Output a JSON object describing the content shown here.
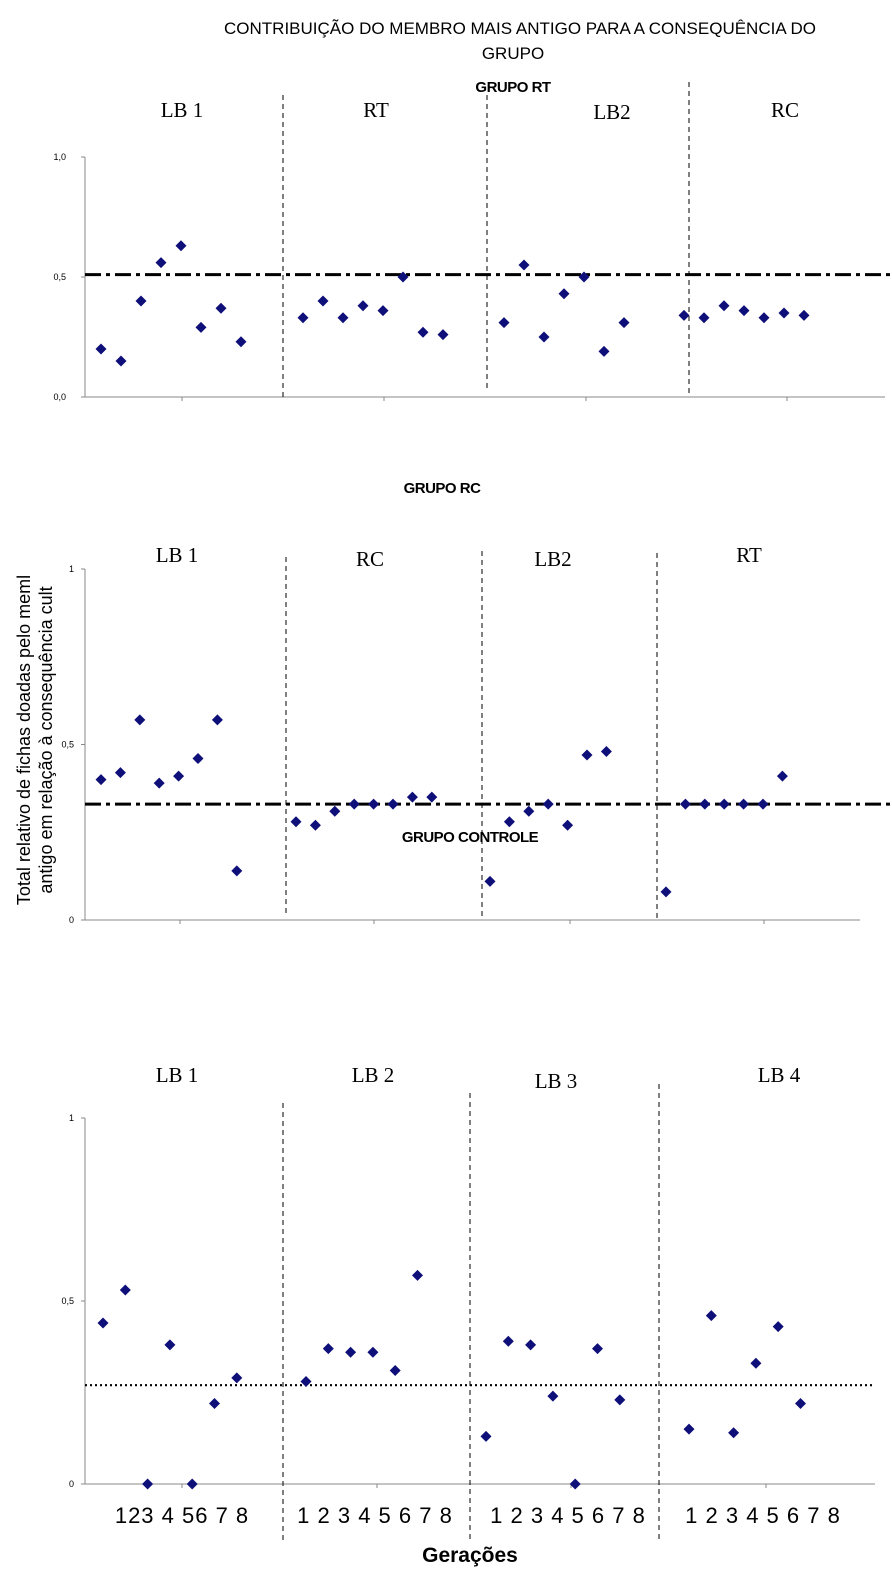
{
  "page": {
    "title_line1": "CONTRIBUIÇÃO DO MEMBRO MAIS ANTIGO PARA A CONSEQUÊNCIA DO",
    "title_line2": "GRUPO",
    "ylabel_line1": "Total relativo de fichas doadas pelo meml",
    "ylabel_line2": "antigo em relação à consequência cult",
    "xlabel": "Gerações"
  },
  "chart_data": [
    {
      "type": "scatter",
      "title": "GRUPO RT",
      "ylim": [
        0,
        1
      ],
      "yticks": [
        "0,0",
        "0,5",
        "1,0"
      ],
      "sections": [
        "LB 1",
        "RT",
        "LB2",
        "RC"
      ],
      "reference_line": {
        "y": 0.51,
        "style": "dash-dot"
      },
      "series": [
        {
          "section": "LB 1",
          "values": [
            0.2,
            0.15,
            0.4,
            0.56,
            0.63,
            0.29,
            0.37,
            0.23
          ]
        },
        {
          "section": "RT",
          "values": [
            0.33,
            0.4,
            0.33,
            0.38,
            0.36,
            0.5,
            0.27,
            0.26
          ]
        },
        {
          "section": "LB2",
          "values": [
            0.31,
            0.55,
            0.25,
            0.43,
            0.5,
            0.19,
            0.31
          ]
        },
        {
          "section": "RC",
          "values": [
            0.34,
            0.33,
            0.38,
            0.36,
            0.33,
            0.35,
            0.34
          ]
        }
      ]
    },
    {
      "type": "scatter",
      "title": "GRUPO RC",
      "ylim": [
        0,
        1
      ],
      "yticks": [
        "0",
        "0,5",
        "1"
      ],
      "sections": [
        "LB 1",
        "RC",
        "LB2",
        "RT"
      ],
      "reference_line": {
        "y": 0.33,
        "style": "dash-dot"
      },
      "series": [
        {
          "section": "LB 1",
          "values": [
            0.4,
            0.42,
            0.57,
            0.39,
            0.41,
            0.46,
            0.57,
            0.14
          ]
        },
        {
          "section": "RC",
          "values": [
            0.28,
            0.27,
            0.31,
            0.33,
            0.33,
            0.33,
            0.35,
            0.35
          ]
        },
        {
          "section": "LB2",
          "values": [
            0.11,
            0.28,
            0.31,
            0.33,
            0.27,
            0.47,
            0.48
          ]
        },
        {
          "section": "RT",
          "values": [
            0.08,
            0.33,
            0.33,
            0.33,
            0.33,
            0.33,
            0.41
          ]
        }
      ]
    },
    {
      "type": "scatter",
      "title": "GRUPO CONTROLE",
      "ylim": [
        0,
        1
      ],
      "yticks": [
        "0",
        "0,5",
        "1"
      ],
      "sections": [
        "LB 1",
        "LB 2",
        "LB 3",
        "LB 4"
      ],
      "reference_line": {
        "y": 0.27,
        "style": "dotted"
      },
      "generation_labels": [
        "123 4 56 7 8",
        "1 2 3 4 5 6 7 8",
        "1 2 3 4 5 6 7 8",
        "1 2 3 4 5 6 7 8"
      ],
      "series": [
        {
          "section": "LB 1",
          "values": [
            0.44,
            0.53,
            0.0,
            0.38,
            0.0,
            0.22,
            0.29
          ]
        },
        {
          "section": "LB 2",
          "values": [
            0.28,
            0.37,
            0.36,
            0.36,
            0.31,
            0.57
          ]
        },
        {
          "section": "LB 3",
          "values": [
            0.13,
            0.39,
            0.38,
            0.24,
            0.0,
            0.37,
            0.23
          ]
        },
        {
          "section": "LB 4",
          "values": [
            0.15,
            0.46,
            0.14,
            0.33,
            0.43,
            0.22
          ]
        }
      ]
    }
  ]
}
